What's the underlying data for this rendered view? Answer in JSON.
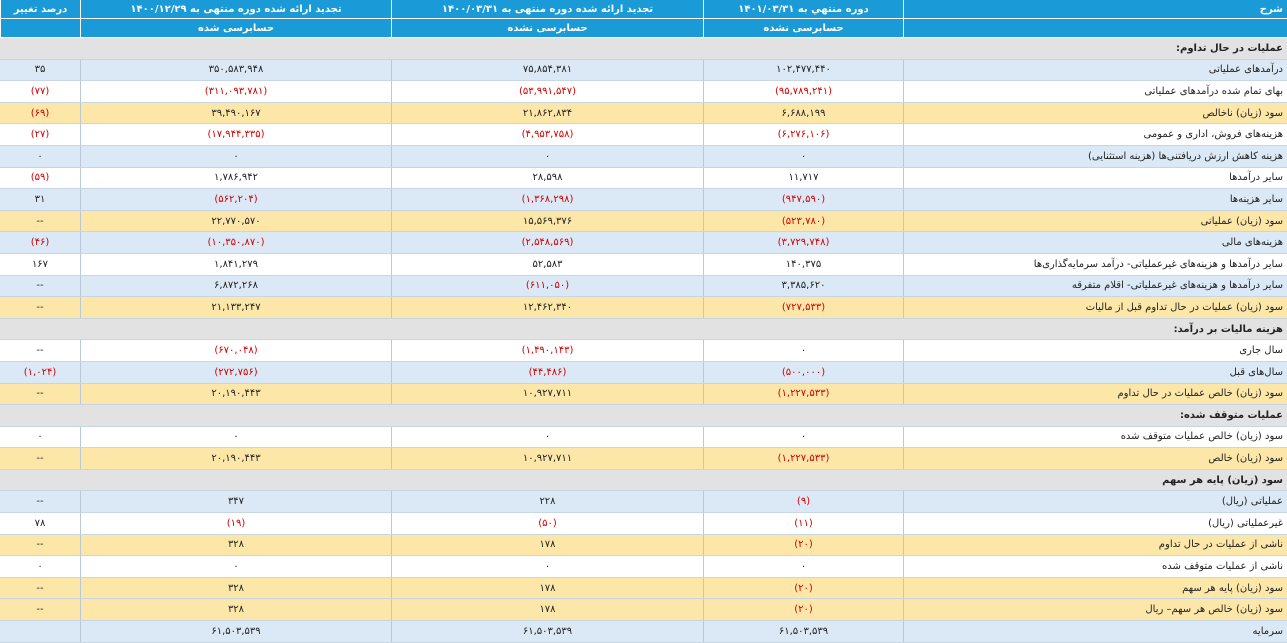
{
  "header": {
    "columns": [
      {
        "title": "شرح"
      },
      {
        "title": "دوره منتهي به ۱۴۰۱/۰۳/۳۱",
        "subtitle": "حسابرسی نشده"
      },
      {
        "title": "تجدید ارائه شده دوره منتهی به ۱۴۰۰/۰۳/۳۱",
        "subtitle": "حسابرسی نشده"
      },
      {
        "title": "تجدید ارائه شده دوره منتهی به ۱۴۰۰/۱۲/۲۹",
        "subtitle": "حسابرسی شده"
      },
      {
        "title": "درصد تغییر"
      }
    ],
    "color": "#1a9ad6"
  },
  "table": {
    "negative_color": "#d40000",
    "section_color": "#e2e2e2",
    "rows": [
      {
        "label": "عملیات در حال تداوم:",
        "bg": "#e2e2e2"
      },
      {
        "label": "درآمدهای عملیاتی",
        "values": [
          "۱۰۲,۴۷۷,۴۴۰",
          "۷۵,۸۵۴,۳۸۱",
          "۳۵۰,۵۸۳,۹۴۸",
          "۳۵"
        ],
        "bg": "#dbe9f6"
      },
      {
        "label": "بهای تمام شده درآمدهای عملیاتی",
        "values": [
          "(۹۵,۷۸۹,۲۴۱)",
          "(۵۳,۹۹۱,۵۴۷)",
          "(۳۱۱,۰۹۳,۷۸۱)",
          "(۷۷)"
        ],
        "bg": "#ffffff"
      },
      {
        "label": "سود (زیان) ناخالص",
        "values": [
          "۶,۶۸۸,۱۹۹",
          "۲۱,۸۶۲,۸۳۴",
          "۳۹,۴۹۰,۱۶۷",
          "(۶۹)"
        ],
        "bg": "#fde7a8"
      },
      {
        "label": "هزینه‌های فروش، اداری و عمومی",
        "values": [
          "(۶,۲۷۶,۱۰۶)",
          "(۴,۹۵۳,۷۵۸)",
          "(۱۷,۹۴۴,۳۳۵)",
          "(۲۷)"
        ],
        "bg": "#ffffff"
      },
      {
        "label": "هزینه کاهش ارزش دریافتنی‌ها (هزینه استثنایی)",
        "values": [
          "۰",
          "۰",
          "۰",
          "۰"
        ],
        "bg": "#dbe9f6"
      },
      {
        "label": "سایر درآمدها",
        "values": [
          "۱۱,۷۱۷",
          "۲۸,۵۹۸",
          "۱,۷۸۶,۹۴۲",
          "(۵۹)"
        ],
        "bg": "#ffffff"
      },
      {
        "label": "سایر هزینه‌ها",
        "values": [
          "(۹۴۷,۵۹۰)",
          "(۱,۳۶۸,۲۹۸)",
          "(۵۶۲,۲۰۴)",
          "۳۱"
        ],
        "bg": "#dbe9f6"
      },
      {
        "label": "سود (زیان) عملیاتی",
        "values": [
          "(۵۲۳,۷۸۰)",
          "۱۵,۵۶۹,۳۷۶",
          "۲۲,۷۷۰,۵۷۰",
          "--"
        ],
        "bg": "#fde7a8"
      },
      {
        "label": "هزینه‌های مالی",
        "values": [
          "(۳,۷۲۹,۷۴۸)",
          "(۲,۵۴۸,۵۶۹)",
          "(۱۰,۳۵۰,۸۷۰)",
          "(۴۶)"
        ],
        "bg": "#dbe9f6"
      },
      {
        "label": "سایر درآمدها و هزینه‌های غیرعملیاتی- درآمد سرمایه‌گذاری‌ها",
        "values": [
          "۱۴۰,۳۷۵",
          "۵۲,۵۸۳",
          "۱,۸۴۱,۲۷۹",
          "۱۶۷"
        ],
        "bg": "#ffffff"
      },
      {
        "label": "سایر درآمدها و هزینه‌های غیرعملیاتی- اقلام متفرقه",
        "values": [
          "۳,۳۸۵,۶۲۰",
          "(۶۱۱,۰۵۰)",
          "۶,۸۷۲,۲۶۸",
          "--"
        ],
        "bg": "#dbe9f6"
      },
      {
        "label": "سود (زیان) عملیات در حال تداوم قبل از مالیات",
        "values": [
          "(۷۲۷,۵۳۳)",
          "۱۲,۴۶۲,۳۴۰",
          "۲۱,۱۳۳,۲۴۷",
          "--"
        ],
        "bg": "#fde7a8"
      },
      {
        "label": "هزینه مالیات بر درآمد:",
        "bg": "#e2e2e2"
      },
      {
        "label": "سال جاری",
        "values": [
          "۰",
          "(۱,۴۹۰,۱۴۳)",
          "(۶۷۰,۰۴۸)",
          "--"
        ],
        "bg": "#ffffff"
      },
      {
        "label": "سال‌های قبل",
        "values": [
          "(۵۰۰,۰۰۰)",
          "(۴۴,۴۸۶)",
          "(۲۷۲,۷۵۶)",
          "(۱,۰۲۴)"
        ],
        "bg": "#dbe9f6"
      },
      {
        "label": "سود (زیان) خالص عملیات در حال تداوم",
        "values": [
          "(۱,۲۲۷,۵۳۳)",
          "۱۰,۹۲۷,۷۱۱",
          "۲۰,۱۹۰,۴۴۳",
          "--"
        ],
        "bg": "#fde7a8"
      },
      {
        "label": "عملیات متوقف شده:",
        "bg": "#e2e2e2"
      },
      {
        "label": "سود (زیان) خالص عملیات متوقف شده",
        "values": [
          "۰",
          "۰",
          "۰",
          "۰"
        ],
        "bg": "#ffffff"
      },
      {
        "label": "سود (زیان) خالص",
        "values": [
          "(۱,۲۲۷,۵۳۳)",
          "۱۰,۹۲۷,۷۱۱",
          "۲۰,۱۹۰,۴۴۳",
          "--"
        ],
        "bg": "#fde7a8"
      },
      {
        "label": "سود (زیان) پایه هر سهم",
        "bg": "#e2e2e2"
      },
      {
        "label": "عملیاتی (ریال)",
        "values": [
          "(۹)",
          "۲۲۸",
          "۳۴۷",
          "--"
        ],
        "bg": "#dbe9f6"
      },
      {
        "label": "غیرعملیاتی (ریال)",
        "values": [
          "(۱۱)",
          "(۵۰)",
          "(۱۹)",
          "۷۸"
        ],
        "bg": "#ffffff"
      },
      {
        "label": "ناشی از عملیات در حال تداوم",
        "values": [
          "(۲۰)",
          "۱۷۸",
          "۳۲۸",
          "--"
        ],
        "bg": "#fde7a8"
      },
      {
        "label": "ناشی از عملیات متوقف شده",
        "values": [
          "۰",
          "۰",
          "۰",
          "۰"
        ],
        "bg": "#ffffff"
      },
      {
        "label": "سود (زیان) پایه هر سهم",
        "values": [
          "(۲۰)",
          "۱۷۸",
          "۳۲۸",
          "--"
        ],
        "bg": "#fde7a8"
      },
      {
        "label": "سود (زیان) خالص هر سهم– ریال",
        "values": [
          "(۲۰)",
          "۱۷۸",
          "۳۲۸",
          "--"
        ],
        "bg": "#fde7a8"
      },
      {
        "label": "سرمایه",
        "values": [
          "۶۱,۵۰۳,۵۳۹",
          "۶۱,۵۰۳,۵۳۹",
          "۶۱,۵۰۳,۵۳۹"
        ],
        "bg": "#dbe9f6"
      }
    ]
  }
}
